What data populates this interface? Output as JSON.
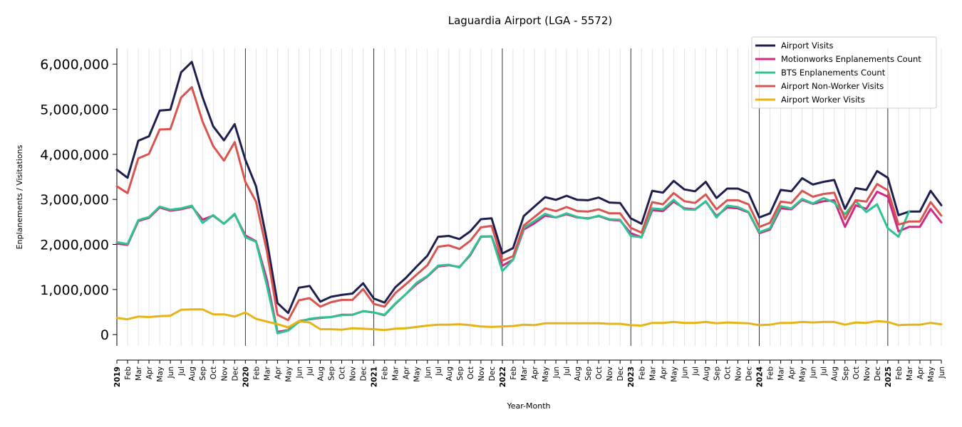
{
  "chart_data": {
    "type": "line",
    "title": "Laguardia Airport (LGA - 5572)",
    "xlabel": "Year-Month",
    "ylabel": "Enplanements / Visitations",
    "ylim": [
      -250000,
      6350000
    ],
    "yticks": [
      0,
      1000000,
      2000000,
      3000000,
      4000000,
      5000000,
      6000000
    ],
    "ytick_labels": [
      "0",
      "1,000,000",
      "2,000,000",
      "3,000,000",
      "4,000,000",
      "5,000,000",
      "6,000,000"
    ],
    "grid": "vertical monthly lines; darker lines at year boundaries",
    "legend_position": "top-right",
    "x": [
      "2019-01",
      "2019-02",
      "2019-03",
      "2019-04",
      "2019-05",
      "2019-06",
      "2019-07",
      "2019-08",
      "2019-09",
      "2019-10",
      "2019-11",
      "2019-12",
      "2020-01",
      "2020-02",
      "2020-03",
      "2020-04",
      "2020-05",
      "2020-06",
      "2020-07",
      "2020-08",
      "2020-09",
      "2020-10",
      "2020-11",
      "2020-12",
      "2021-01",
      "2021-02",
      "2021-03",
      "2021-04",
      "2021-05",
      "2021-06",
      "2021-07",
      "2021-08",
      "2021-09",
      "2021-10",
      "2021-11",
      "2021-12",
      "2022-01",
      "2022-02",
      "2022-03",
      "2022-04",
      "2022-05",
      "2022-06",
      "2022-07",
      "2022-08",
      "2022-09",
      "2022-10",
      "2022-11",
      "2022-12",
      "2023-01",
      "2023-02",
      "2023-03",
      "2023-04",
      "2023-05",
      "2023-06",
      "2023-07",
      "2023-08",
      "2023-09",
      "2023-10",
      "2023-11",
      "2023-12",
      "2024-01",
      "2024-02",
      "2024-03",
      "2024-04",
      "2024-05",
      "2024-06",
      "2024-07",
      "2024-08",
      "2024-09",
      "2024-10",
      "2024-11",
      "2024-12",
      "2025-01",
      "2025-02",
      "2025-03",
      "2025-04",
      "2025-05",
      "2025-06"
    ],
    "x_tick_labels": [
      "2019",
      "Feb",
      "Mar",
      "Apr",
      "May",
      "Jun",
      "Jul",
      "Aug",
      "Sep",
      "Oct",
      "Nov",
      "Dec",
      "2020",
      "Feb",
      "Mar",
      "Apr",
      "May",
      "Jun",
      "Jul",
      "Aug",
      "Sep",
      "Oct",
      "Nov",
      "Dec",
      "2021",
      "Feb",
      "Mar",
      "Apr",
      "May",
      "Jun",
      "Jul",
      "Aug",
      "Sep",
      "Oct",
      "Nov",
      "Dec",
      "2022",
      "Feb",
      "Mar",
      "Apr",
      "May",
      "Jun",
      "Jul",
      "Aug",
      "Sep",
      "Oct",
      "Nov",
      "Dec",
      "2023",
      "Feb",
      "Mar",
      "Apr",
      "May",
      "Jun",
      "Jul",
      "Aug",
      "Sep",
      "Oct",
      "Nov",
      "Dec",
      "2024",
      "Feb",
      "Mar",
      "Apr",
      "May",
      "Jun",
      "Jul",
      "Aug",
      "Sep",
      "Oct",
      "Nov",
      "Dec",
      "2025",
      "Feb",
      "Mar",
      "Apr",
      "May",
      "Jun"
    ],
    "series": [
      {
        "name": "Airport Visits",
        "color": "#1f1f4f",
        "values": [
          3660000,
          3480000,
          4300000,
          4400000,
          4970000,
          4990000,
          5820000,
          6050000,
          5270000,
          4620000,
          4310000,
          4670000,
          3880000,
          3290000,
          2100000,
          700000,
          480000,
          1040000,
          1080000,
          730000,
          840000,
          880000,
          910000,
          1140000,
          800000,
          710000,
          1050000,
          1260000,
          1510000,
          1750000,
          2170000,
          2190000,
          2120000,
          2290000,
          2560000,
          2580000,
          1800000,
          1920000,
          2630000,
          2840000,
          3050000,
          2990000,
          3080000,
          2990000,
          2980000,
          3040000,
          2930000,
          2920000,
          2580000,
          2460000,
          3190000,
          3150000,
          3410000,
          3220000,
          3180000,
          3390000,
          3030000,
          3240000,
          3240000,
          3140000,
          2600000,
          2690000,
          3210000,
          3180000,
          3470000,
          3330000,
          3390000,
          3430000,
          2790000,
          3250000,
          3210000,
          3630000,
          3480000,
          2650000,
          2730000,
          2730000,
          3190000,
          2870000
        ]
      },
      {
        "name": "Motionworks Enplanements Count",
        "color": "#cf2a87",
        "values": [
          2020000,
          1990000,
          2520000,
          2590000,
          2820000,
          2750000,
          2780000,
          2840000,
          2550000,
          2640000,
          2460000,
          2670000,
          2200000,
          2070000,
          1230000,
          60000,
          100000,
          300000,
          340000,
          370000,
          390000,
          440000,
          440000,
          520000,
          490000,
          430000,
          680000,
          900000,
          1120000,
          1290000,
          1510000,
          1540000,
          1500000,
          1760000,
          2170000,
          2180000,
          1530000,
          1660000,
          2330000,
          2470000,
          2640000,
          2600000,
          2670000,
          2600000,
          2580000,
          2630000,
          2550000,
          2530000,
          2250000,
          2160000,
          2760000,
          2740000,
          2950000,
          2800000,
          2780000,
          2950000,
          2630000,
          2820000,
          2800000,
          2710000,
          2250000,
          2330000,
          2800000,
          2780000,
          2990000,
          2900000,
          2960000,
          2980000,
          2390000,
          2870000,
          2790000,
          3170000,
          3060000,
          2290000,
          2390000,
          2390000,
          2790000,
          2490000
        ]
      },
      {
        "name": "BTS Enplanements Count",
        "color": "#2ec391",
        "values": [
          2050000,
          2010000,
          2540000,
          2610000,
          2840000,
          2770000,
          2800000,
          2860000,
          2480000,
          2650000,
          2460000,
          2680000,
          2160000,
          2060000,
          1100000,
          30000,
          90000,
          280000,
          350000,
          380000,
          390000,
          430000,
          440000,
          520000,
          490000,
          440000,
          690000,
          900000,
          1150000,
          1300000,
          1530000,
          1550000,
          1490000,
          1780000,
          2180000,
          2180000,
          1410000,
          1660000,
          2370000,
          2520000,
          2680000,
          2600000,
          2690000,
          2610000,
          2570000,
          2640000,
          2560000,
          2550000,
          2190000,
          2160000,
          2800000,
          2780000,
          2990000,
          2780000,
          2770000,
          2960000,
          2600000,
          2860000,
          2830000,
          2720000,
          2270000,
          2360000,
          2850000,
          2800000,
          3010000,
          2910000,
          3030000,
          2930000,
          2670000,
          2960000,
          2720000,
          2890000,
          2360000,
          2170000,
          2740000,
          null,
          null,
          null
        ]
      },
      {
        "name": "Airport Non-Worker Visits",
        "color": "#d9534f",
        "values": [
          3290000,
          3140000,
          3910000,
          4010000,
          4550000,
          4560000,
          5260000,
          5490000,
          4730000,
          4180000,
          3860000,
          4270000,
          3390000,
          2950000,
          1860000,
          440000,
          320000,
          760000,
          810000,
          620000,
          720000,
          770000,
          770000,
          1010000,
          680000,
          620000,
          920000,
          1120000,
          1330000,
          1540000,
          1950000,
          1980000,
          1900000,
          2080000,
          2380000,
          2410000,
          1640000,
          1740000,
          2420000,
          2610000,
          2800000,
          2740000,
          2830000,
          2740000,
          2730000,
          2780000,
          2690000,
          2690000,
          2370000,
          2260000,
          2940000,
          2890000,
          3140000,
          2960000,
          2920000,
          3110000,
          2780000,
          2980000,
          2980000,
          2890000,
          2390000,
          2480000,
          2950000,
          2920000,
          3190000,
          3060000,
          3120000,
          3150000,
          2560000,
          2980000,
          2950000,
          3340000,
          3200000,
          2440000,
          2510000,
          2510000,
          2940000,
          2640000
        ]
      },
      {
        "name": "Airport Worker Visits",
        "color": "#e6b416",
        "values": [
          370000,
          340000,
          400000,
          390000,
          410000,
          420000,
          550000,
          560000,
          560000,
          450000,
          450000,
          400000,
          490000,
          350000,
          290000,
          230000,
          160000,
          300000,
          270000,
          120000,
          120000,
          110000,
          140000,
          130000,
          120000,
          100000,
          130000,
          140000,
          170000,
          200000,
          220000,
          220000,
          230000,
          210000,
          180000,
          170000,
          180000,
          190000,
          220000,
          210000,
          250000,
          250000,
          250000,
          250000,
          250000,
          250000,
          240000,
          240000,
          210000,
          200000,
          260000,
          260000,
          280000,
          260000,
          260000,
          280000,
          250000,
          270000,
          260000,
          250000,
          210000,
          220000,
          260000,
          260000,
          280000,
          270000,
          280000,
          280000,
          220000,
          270000,
          260000,
          300000,
          280000,
          210000,
          220000,
          220000,
          260000,
          230000
        ]
      }
    ]
  }
}
